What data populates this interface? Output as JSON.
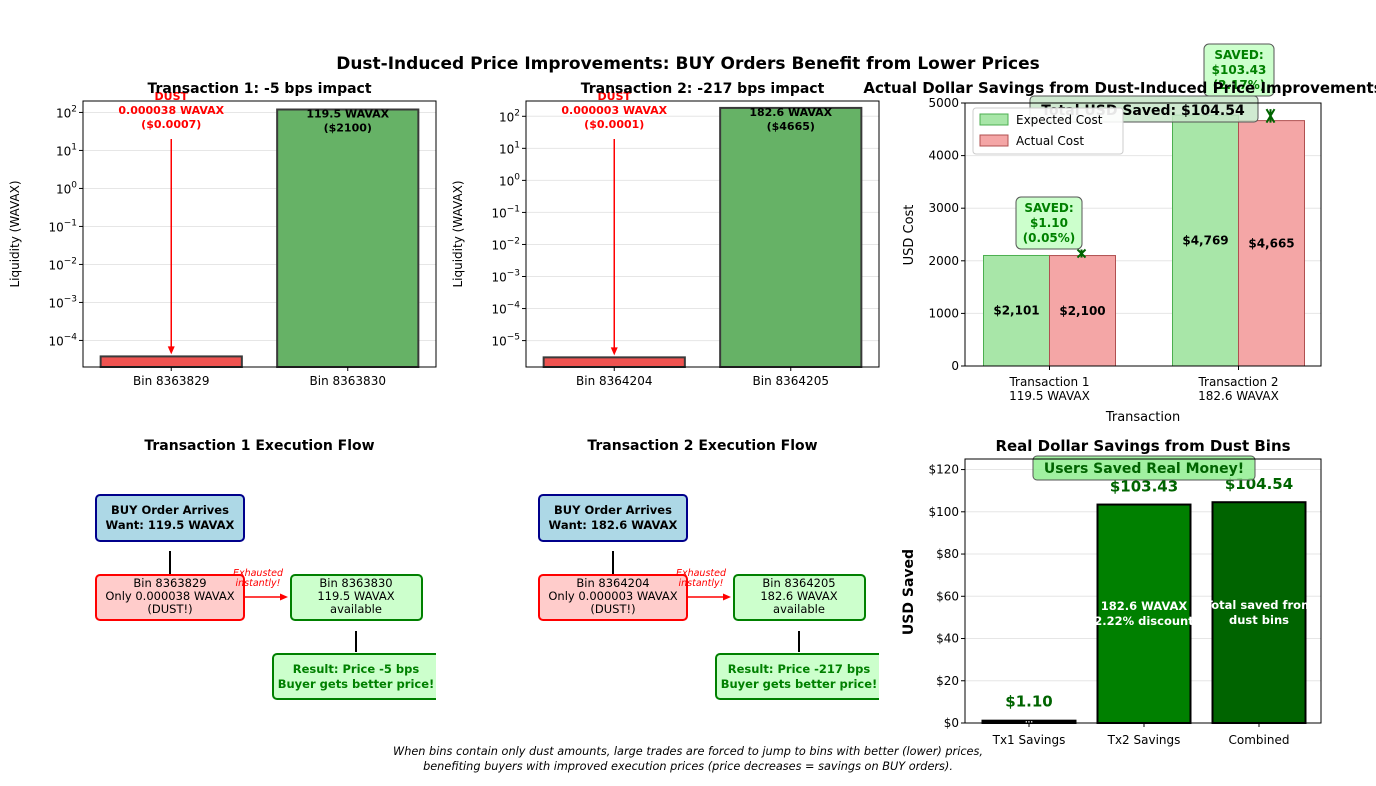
{
  "suptitle": "Dust-Induced Price Improvements: BUY Orders Benefit from Lower Prices",
  "caption_lines": [
    "When bins contain only dust amounts, large trades are forced to jump to bins with better (lower) prices,",
    "benefiting buyers with improved execution prices (price decreases = savings on BUY orders)."
  ],
  "colors": {
    "dust_bar": "#ef5350",
    "liquidity_bar": "#66b266",
    "expected": "#a8e6a8",
    "actual": "#f4a6a6",
    "savings_dark": "#008000",
    "savings_darker": "#006400",
    "flow_blue": "#add8e6",
    "flow_red": "#ffcccb",
    "flow_green": "#ccffcc"
  },
  "chart_data": [
    {
      "id": "tx1",
      "type": "bar",
      "title": "Transaction 1: -5 bps impact",
      "ylabel": "Liquidity (WAVAX)",
      "yscale": "log",
      "ylim": [
        2e-05,
        200
      ],
      "yticks": [
        -4,
        -3,
        -2,
        -1,
        0,
        1,
        2
      ],
      "categories": [
        "Bin 8363829",
        "Bin 8363830"
      ],
      "values": [
        3.8e-05,
        119.5
      ],
      "bar_labels": [
        [
          "DUST",
          "0.000038 WAVAX",
          "($0.0007)"
        ],
        [
          "119.5 WAVAX",
          "($2100)"
        ]
      ],
      "grid": true
    },
    {
      "id": "tx2",
      "type": "bar",
      "title": "Transaction 2: -217 bps impact",
      "ylabel": "Liquidity (WAVAX)",
      "yscale": "log",
      "ylim": [
        1.5e-06,
        300
      ],
      "yticks": [
        -5,
        -4,
        -3,
        -2,
        -1,
        0,
        1,
        2
      ],
      "categories": [
        "Bin 8364204",
        "Bin 8364205"
      ],
      "values": [
        3e-06,
        182.6
      ],
      "bar_labels": [
        [
          "DUST",
          "0.000003 WAVAX",
          "($0.0001)"
        ],
        [
          "182.6 WAVAX",
          "($4665)"
        ]
      ],
      "grid": true
    },
    {
      "id": "costs",
      "type": "bar",
      "title": "Actual Dollar Savings from Dust-Induced Price Improvements",
      "xlabel": "Transaction",
      "ylabel": "USD Cost",
      "ylim": [
        0,
        5000
      ],
      "yticks": [
        0,
        1000,
        2000,
        3000,
        4000,
        5000
      ],
      "categories": [
        [
          "Transaction 1",
          "119.5 WAVAX"
        ],
        [
          "Transaction 2",
          "182.6 WAVAX"
        ]
      ],
      "series": [
        {
          "name": "Expected Cost",
          "values": [
            2101,
            4769
          ],
          "labels": [
            "$2,101",
            "$4,769"
          ]
        },
        {
          "name": "Actual Cost",
          "values": [
            2100,
            4665
          ],
          "labels": [
            "$2,100",
            "$4,665"
          ]
        }
      ],
      "saved_boxes": [
        [
          "SAVED:",
          "$1.10",
          "(0.05%)"
        ],
        [
          "SAVED:",
          "$103.43",
          "(2.17%)"
        ]
      ],
      "total_box": "Total USD Saved: $104.54",
      "legend": "top-left",
      "grid": true
    },
    {
      "id": "savings",
      "type": "bar",
      "title": "Real Dollar Savings from Dust Bins",
      "ylabel": "USD Saved",
      "ylim": [
        0,
        125
      ],
      "yticks": [
        0,
        20,
        40,
        60,
        80,
        100,
        120
      ],
      "ytick_labels": [
        "$0",
        "$20",
        "$40",
        "$60",
        "$80",
        "$100",
        "$120"
      ],
      "categories": [
        "Tx1 Savings",
        "Tx2 Savings",
        "Combined"
      ],
      "values": [
        1.1,
        103.43,
        104.54
      ],
      "value_labels": [
        "$1.10",
        "$103.43",
        "$104.54"
      ],
      "inner_labels": [
        [
          "..."
        ],
        [
          "182.6 WAVAX",
          "2.22% discount"
        ],
        [
          "Total saved from",
          "dust bins"
        ]
      ],
      "banner": "Users Saved Real Money!",
      "grid": true
    }
  ],
  "flows": [
    {
      "title": "Transaction 1 Execution Flow",
      "arrive": [
        "BUY Order Arrives",
        "Want: 119.5 WAVAX"
      ],
      "dust_bin": [
        "Bin 8363829",
        "Only 0.000038 WAVAX",
        "(DUST!)"
      ],
      "exhausted": [
        "Exhausted",
        "instantly!"
      ],
      "next_bin": [
        "Bin 8363830",
        "119.5 WAVAX",
        "available"
      ],
      "result": [
        "Result: Price -5 bps",
        "Buyer gets better price!"
      ]
    },
    {
      "title": "Transaction 2 Execution Flow",
      "arrive": [
        "BUY Order Arrives",
        "Want: 182.6 WAVAX"
      ],
      "dust_bin": [
        "Bin 8364204",
        "Only 0.000003 WAVAX",
        "(DUST!)"
      ],
      "exhausted": [
        "Exhausted",
        "instantly!"
      ],
      "next_bin": [
        "Bin 8364205",
        "182.6 WAVAX",
        "available"
      ],
      "result": [
        "Result: Price -217 bps",
        "Buyer gets better price!"
      ]
    }
  ]
}
